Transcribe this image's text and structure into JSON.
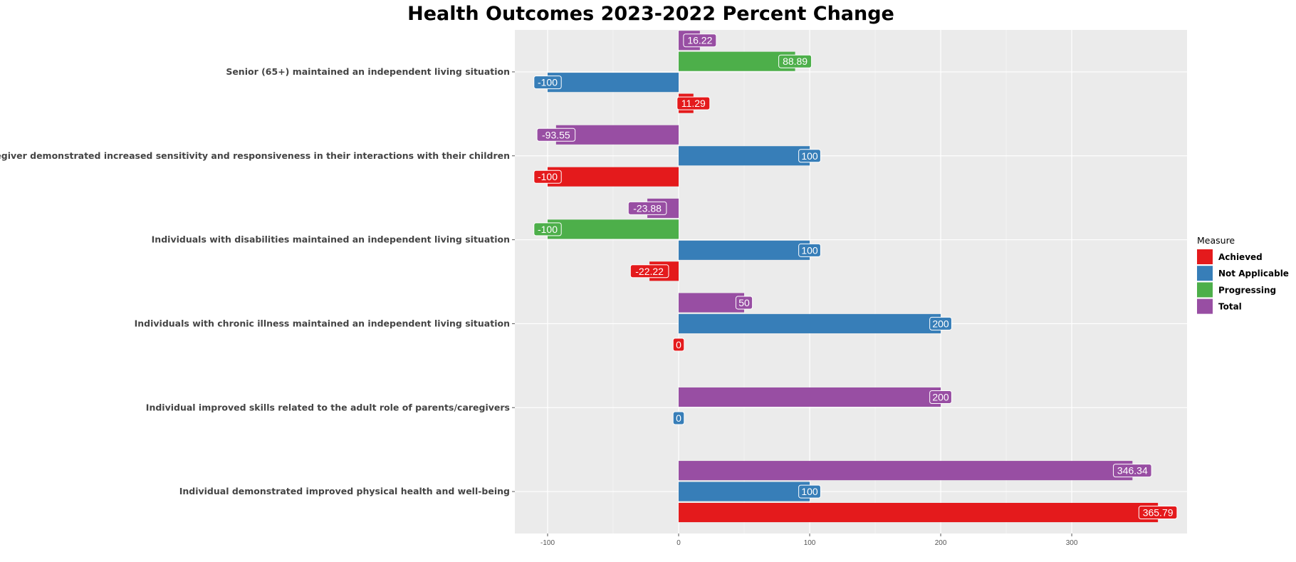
{
  "chart_data": {
    "type": "bar",
    "orientation": "horizontal",
    "title": "Health Outcomes 2023-2022 Percent Change",
    "xlabel": "",
    "ylabel": "",
    "xlim": [
      -125,
      388
    ],
    "x_ticks": [
      -100,
      0,
      100,
      200,
      300
    ],
    "grid": true,
    "legend_title": "Measure",
    "legend_position": "right",
    "categories": [
      "Senior (65+) maintained an independent living situation",
      "Parent/caregiver demonstrated increased sensitivity and responsiveness in their interactions with their children",
      "Individuals with disabilities maintained an independent living situation",
      "Individuals with chronic illness maintained an independent living situation",
      "Individual improved skills related to the adult role of parents/caregivers",
      "Individual demonstrated improved physical health and well-being"
    ],
    "series": [
      {
        "name": "Achieved",
        "color": "#E41A1C",
        "values": [
          11.29,
          -100,
          -22.22,
          0,
          null,
          365.79
        ]
      },
      {
        "name": "Not Applicable",
        "color": "#377EB8",
        "values": [
          -100,
          100,
          100,
          200,
          0,
          100
        ]
      },
      {
        "name": "Progressing",
        "color": "#4DAF4A",
        "values": [
          88.89,
          null,
          -100,
          null,
          null,
          null
        ]
      },
      {
        "name": "Total",
        "color": "#984EA3",
        "values": [
          16.22,
          -93.55,
          -23.88,
          50,
          200,
          346.34
        ]
      }
    ]
  }
}
